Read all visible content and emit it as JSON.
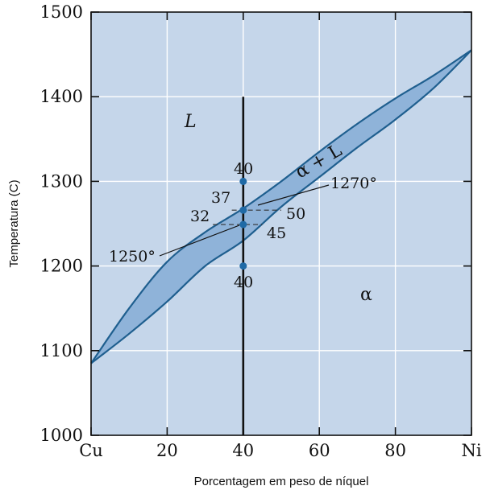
{
  "chart_data": {
    "type": "phase-diagram",
    "xlabel": "Porcentagem em peso de níquel",
    "ylabel": "Temperatura (C)",
    "xlim": [
      0,
      100
    ],
    "ylim": [
      1000,
      1500
    ],
    "x_ticks": [
      {
        "value": 0,
        "label": "Cu"
      },
      {
        "value": 20,
        "label": "20"
      },
      {
        "value": 40,
        "label": "40"
      },
      {
        "value": 60,
        "label": "60"
      },
      {
        "value": 80,
        "label": "80"
      },
      {
        "value": 100,
        "label": "Ni"
      }
    ],
    "y_ticks": [
      1000,
      1100,
      1200,
      1300,
      1400,
      1500
    ],
    "grid": true,
    "colors": {
      "background": "#c5d6ea",
      "two_phase": "#8fb3d9",
      "curve": "#1f5f8f",
      "grid": "#ffffff",
      "marker": "#1f6aa6"
    },
    "liquidus": [
      [
        0,
        1085
      ],
      [
        10,
        1150
      ],
      [
        20,
        1205
      ],
      [
        30,
        1240
      ],
      [
        40,
        1268
      ],
      [
        50,
        1300
      ],
      [
        60,
        1335
      ],
      [
        70,
        1368
      ],
      [
        80,
        1398
      ],
      [
        90,
        1425
      ],
      [
        100,
        1455
      ]
    ],
    "solidus": [
      [
        0,
        1085
      ],
      [
        10,
        1120
      ],
      [
        20,
        1158
      ],
      [
        30,
        1200
      ],
      [
        40,
        1230
      ],
      [
        50,
        1270
      ],
      [
        60,
        1305
      ],
      [
        70,
        1340
      ],
      [
        80,
        1373
      ],
      [
        90,
        1410
      ],
      [
        100,
        1455
      ]
    ],
    "composition_line": {
      "x": 40,
      "y_from": 1000,
      "y_to": 1400
    },
    "points": [
      {
        "x": 40,
        "y": 1300
      },
      {
        "x": 40,
        "y": 1266
      },
      {
        "x": 40,
        "y": 1249
      },
      {
        "x": 40,
        "y": 1200
      }
    ],
    "tie_lines": [
      {
        "y": 1266,
        "x1": 37,
        "x2": 50
      },
      {
        "y": 1249,
        "x1": 32,
        "x2": 45
      }
    ],
    "labels": {
      "liquid": "L",
      "alpha": "α",
      "two_phase": "α + L",
      "t1270": "1270°",
      "t1250": "1250°",
      "c40_top": "40",
      "c37": "37",
      "c32": "32",
      "c50": "50",
      "c45": "45",
      "c40_bottom": "40"
    }
  }
}
